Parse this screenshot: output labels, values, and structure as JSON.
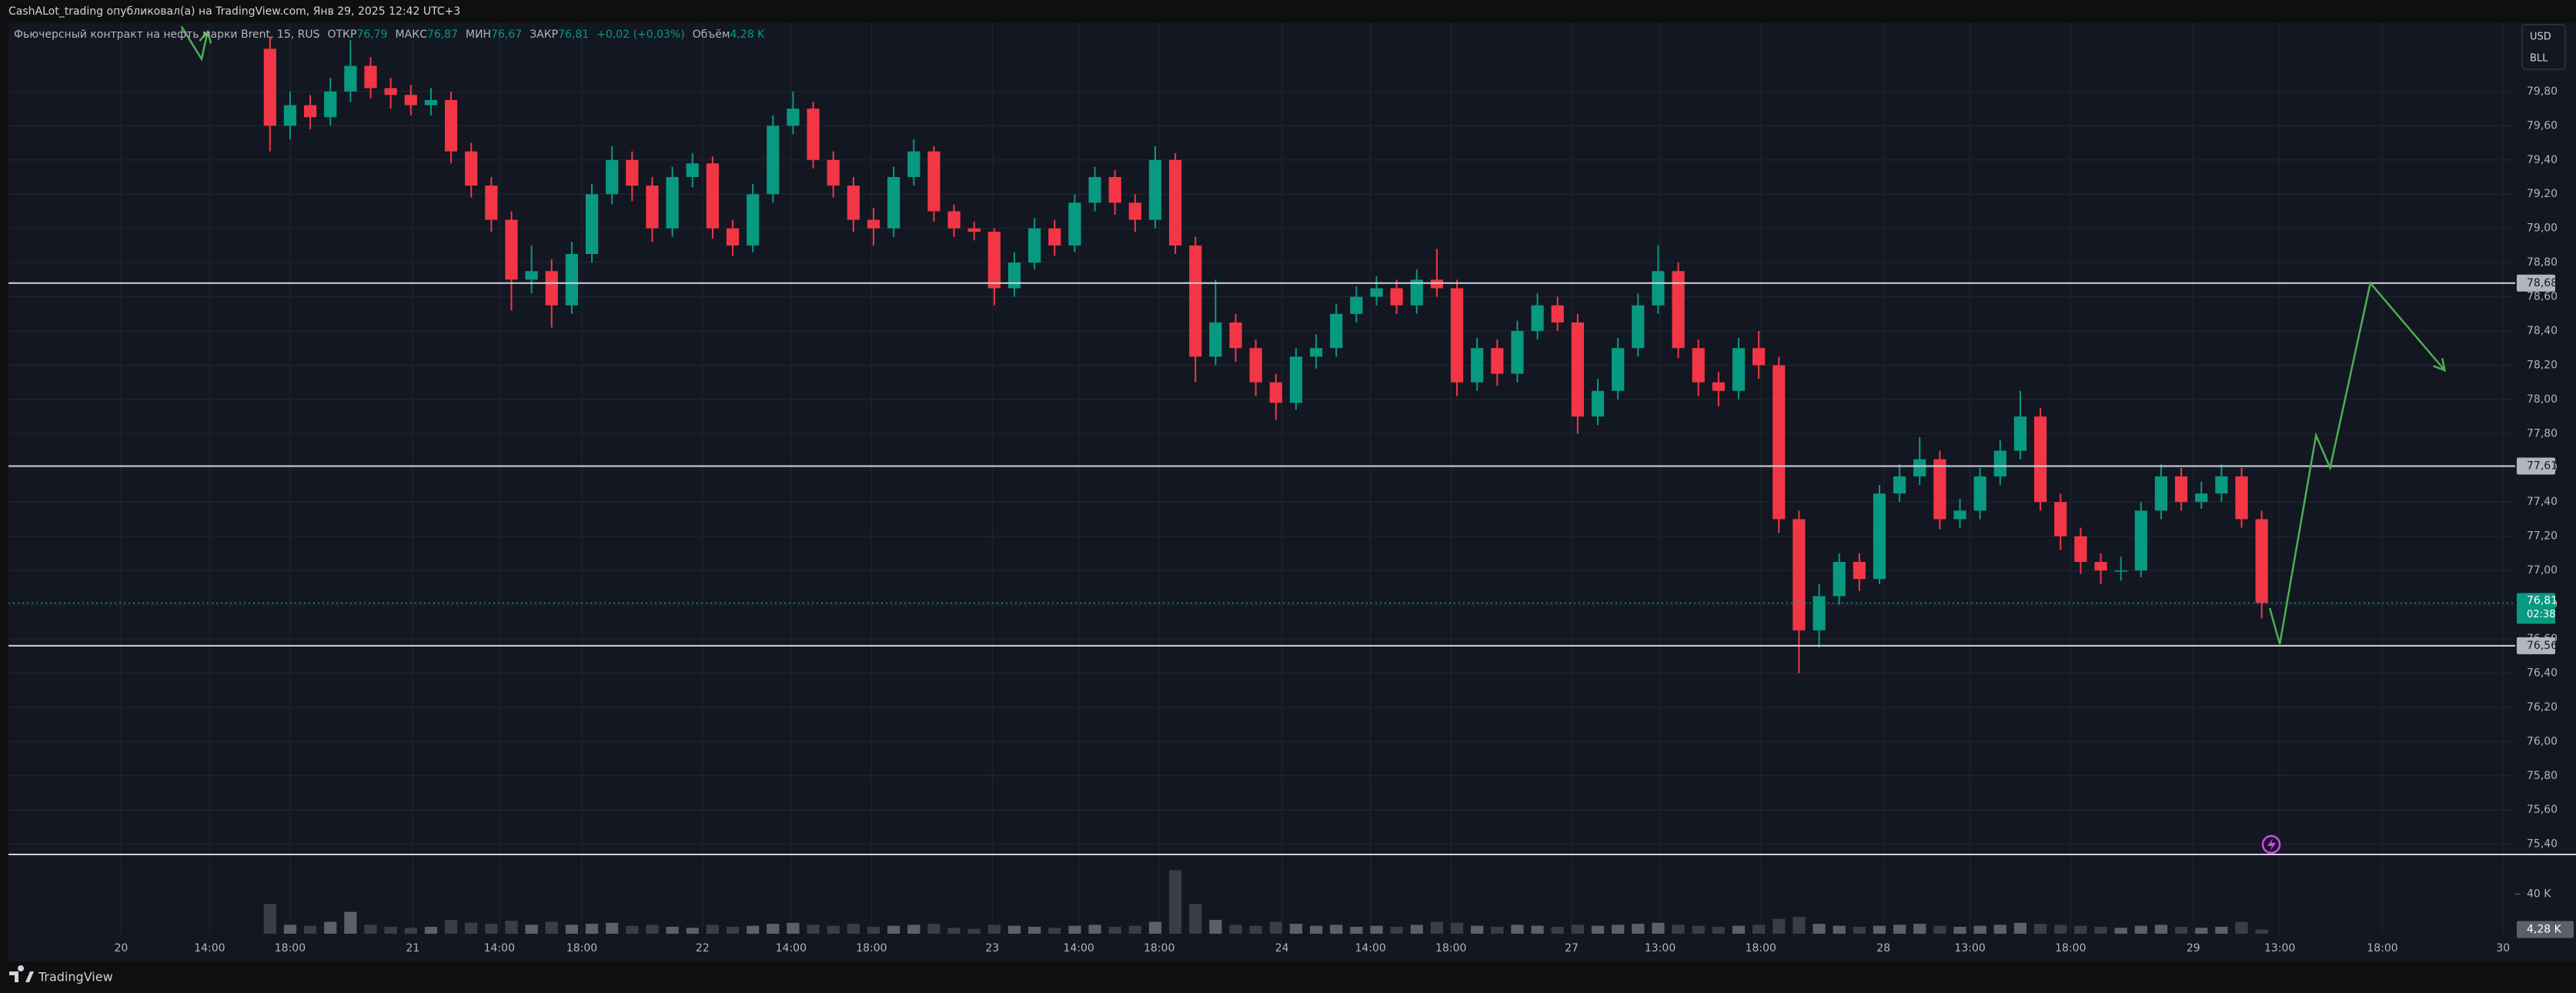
{
  "header": {
    "author_line": "CashALot_trading опубликовал(а) на TradingView.com, Янв 29, 2025 12:42 UTC+3"
  },
  "legend": {
    "symbol": "Фьючерсный контракт на нефть марки Brent, 15, RUS",
    "open_label": "ОТКР",
    "open": "76,79",
    "high_label": "МАКС",
    "high": "76,87",
    "low_label": "МИН",
    "low": "76,67",
    "close_label": "ЗАКР",
    "close": "76,81",
    "change": "+0,02 (+0,03%)",
    "volume_label": "Объём",
    "volume": "4,28 K"
  },
  "currency": {
    "code": "USD",
    "unit": "BLL"
  },
  "footer": {
    "brand": "TradingView"
  },
  "chart_data": {
    "type": "candlestick",
    "up_color": "#089981",
    "down_color": "#f23645",
    "xlim": [
      0,
      124.6
    ],
    "ylim": [
      75.34,
      80.2
    ],
    "grid": true,
    "yticks": [
      {
        "value": 75.4,
        "label": "75,40"
      },
      {
        "value": 75.6,
        "label": "75,60"
      },
      {
        "value": 75.8,
        "label": "75,80"
      },
      {
        "value": 76.0,
        "label": "76,00"
      },
      {
        "value": 76.2,
        "label": "76,20"
      },
      {
        "value": 76.4,
        "label": "76,40"
      },
      {
        "value": 76.6,
        "label": "76,60"
      },
      {
        "value": 76.8,
        "label": "76,80"
      },
      {
        "value": 77.0,
        "label": "77,00"
      },
      {
        "value": 77.2,
        "label": "77,20"
      },
      {
        "value": 77.4,
        "label": "77,40"
      },
      {
        "value": 77.6,
        "label": "77,60"
      },
      {
        "value": 77.8,
        "label": "77,80"
      },
      {
        "value": 78.0,
        "label": "78,00"
      },
      {
        "value": 78.2,
        "label": "78,20"
      },
      {
        "value": 78.4,
        "label": "78,40"
      },
      {
        "value": 78.6,
        "label": "78,60"
      },
      {
        "value": 78.8,
        "label": "78,80"
      },
      {
        "value": 79.0,
        "label": "79,00"
      },
      {
        "value": 79.2,
        "label": "79,20"
      },
      {
        "value": 79.4,
        "label": "79,40"
      },
      {
        "value": 79.6,
        "label": "79,60"
      },
      {
        "value": 79.8,
        "label": "79,80"
      }
    ],
    "xticks": [
      {
        "value": 5.6,
        "label": "20"
      },
      {
        "value": 10.0,
        "label": "14:00"
      },
      {
        "value": 14.0,
        "label": "18:00"
      },
      {
        "value": 20.1,
        "label": "21"
      },
      {
        "value": 24.4,
        "label": "14:00"
      },
      {
        "value": 28.5,
        "label": "18:00"
      },
      {
        "value": 34.5,
        "label": "22"
      },
      {
        "value": 38.9,
        "label": "14:00"
      },
      {
        "value": 42.9,
        "label": "18:00"
      },
      {
        "value": 48.9,
        "label": "23"
      },
      {
        "value": 53.2,
        "label": "14:00"
      },
      {
        "value": 57.2,
        "label": "18:00"
      },
      {
        "value": 63.3,
        "label": "24"
      },
      {
        "value": 67.7,
        "label": "14:00"
      },
      {
        "value": 71.7,
        "label": "18:00"
      },
      {
        "value": 77.7,
        "label": "27"
      },
      {
        "value": 82.1,
        "label": "13:00"
      },
      {
        "value": 87.1,
        "label": "18:00"
      },
      {
        "value": 93.2,
        "label": "28"
      },
      {
        "value": 97.5,
        "label": "13:00"
      },
      {
        "value": 102.5,
        "label": "18:00"
      },
      {
        "value": 108.6,
        "label": "29"
      },
      {
        "value": 112.9,
        "label": "13:00"
      },
      {
        "value": 118.0,
        "label": "18:00"
      },
      {
        "value": 124.0,
        "label": "30"
      }
    ],
    "candles": {
      "x": [
        13,
        14,
        15,
        16,
        17,
        18,
        19,
        20,
        21,
        22,
        23,
        24,
        25,
        26,
        27,
        28,
        29,
        30,
        31,
        32,
        33,
        34,
        35,
        36,
        37,
        38,
        39,
        40,
        41,
        42,
        43,
        44,
        45,
        46,
        47,
        48,
        49,
        50,
        51,
        52,
        53,
        54,
        55,
        56,
        57,
        58,
        59,
        60,
        61,
        62,
        63,
        64,
        65,
        66,
        67,
        68,
        69,
        70,
        71,
        72,
        73,
        74,
        75,
        76,
        77,
        78,
        79,
        80,
        81,
        82,
        83,
        84,
        85,
        86,
        87,
        88,
        89,
        90,
        91,
        92,
        93,
        94,
        95,
        96,
        97,
        98,
        99,
        100,
        101,
        102,
        103,
        104,
        105,
        106,
        107,
        108,
        109,
        110,
        111,
        112
      ],
      "open": [
        80.05,
        79.6,
        79.72,
        79.65,
        79.8,
        79.95,
        79.82,
        79.78,
        79.72,
        79.75,
        79.45,
        79.25,
        79.05,
        78.7,
        78.75,
        78.55,
        78.85,
        79.2,
        79.4,
        79.25,
        79.0,
        79.3,
        79.38,
        79.0,
        78.9,
        79.2,
        79.6,
        79.7,
        79.4,
        79.25,
        79.05,
        79.0,
        79.3,
        79.45,
        79.1,
        79.0,
        78.98,
        78.65,
        78.8,
        79.0,
        78.9,
        79.15,
        79.3,
        79.15,
        79.05,
        79.4,
        78.9,
        78.25,
        78.45,
        78.3,
        78.1,
        77.98,
        78.25,
        78.3,
        78.5,
        78.6,
        78.65,
        78.55,
        78.7,
        78.65,
        78.1,
        78.3,
        78.15,
        78.4,
        78.55,
        78.45,
        77.9,
        78.05,
        78.3,
        78.55,
        78.75,
        78.3,
        78.1,
        78.05,
        78.3,
        78.2,
        77.3,
        76.65,
        76.85,
        77.05,
        76.95,
        77.45,
        77.55,
        77.65,
        77.3,
        77.35,
        77.55,
        77.7,
        77.9,
        77.4,
        77.2,
        77.05,
        77.0,
        77.0,
        77.35,
        77.55,
        77.4,
        77.45,
        77.55,
        77.3
      ],
      "high": [
        80.12,
        79.8,
        79.78,
        79.88,
        80.1,
        80.0,
        79.88,
        79.84,
        79.82,
        79.8,
        79.5,
        79.3,
        79.1,
        78.9,
        78.82,
        78.92,
        79.26,
        79.48,
        79.45,
        79.3,
        79.36,
        79.44,
        79.42,
        79.05,
        79.26,
        79.66,
        79.8,
        79.74,
        79.45,
        79.3,
        79.12,
        79.36,
        79.52,
        79.48,
        79.14,
        79.04,
        79.0,
        78.86,
        79.06,
        79.05,
        79.2,
        79.36,
        79.34,
        79.2,
        79.48,
        79.44,
        78.95,
        78.7,
        78.5,
        78.35,
        78.15,
        78.3,
        78.38,
        78.56,
        78.66,
        78.72,
        78.7,
        78.76,
        78.88,
        78.7,
        78.36,
        78.35,
        78.46,
        78.62,
        78.6,
        78.5,
        78.12,
        78.36,
        78.62,
        78.9,
        78.8,
        78.35,
        78.16,
        78.36,
        78.4,
        78.25,
        77.35,
        76.92,
        77.1,
        77.1,
        77.5,
        77.62,
        77.78,
        77.7,
        77.42,
        77.6,
        77.76,
        78.05,
        77.95,
        77.45,
        77.25,
        77.1,
        77.08,
        77.4,
        77.62,
        77.6,
        77.52,
        77.62,
        77.6,
        77.35
      ],
      "low": [
        79.45,
        79.52,
        79.58,
        79.6,
        79.74,
        79.76,
        79.7,
        79.66,
        79.66,
        79.38,
        79.18,
        78.98,
        78.52,
        78.62,
        78.42,
        78.5,
        78.8,
        79.14,
        79.16,
        78.92,
        78.95,
        79.24,
        78.94,
        78.84,
        78.86,
        79.15,
        79.55,
        79.35,
        79.18,
        78.98,
        78.9,
        78.95,
        79.25,
        79.04,
        78.95,
        78.93,
        78.55,
        78.6,
        78.76,
        78.84,
        78.86,
        79.1,
        79.08,
        78.98,
        79.0,
        78.85,
        78.1,
        78.2,
        78.22,
        78.02,
        77.88,
        77.94,
        78.18,
        78.25,
        78.45,
        78.55,
        78.5,
        78.5,
        78.6,
        78.02,
        78.05,
        78.08,
        78.1,
        78.35,
        78.4,
        77.8,
        77.85,
        78.0,
        78.25,
        78.5,
        78.24,
        78.02,
        77.96,
        78.0,
        78.12,
        77.22,
        76.4,
        76.55,
        76.8,
        76.88,
        76.92,
        77.4,
        77.5,
        77.24,
        77.25,
        77.3,
        77.5,
        77.65,
        77.35,
        77.12,
        76.98,
        76.92,
        76.94,
        76.96,
        77.3,
        77.35,
        77.36,
        77.4,
        77.25,
        76.72
      ],
      "close": [
        79.6,
        79.72,
        79.65,
        79.8,
        79.95,
        79.82,
        79.78,
        79.72,
        79.75,
        79.45,
        79.25,
        79.05,
        78.7,
        78.75,
        78.55,
        78.85,
        79.2,
        79.4,
        79.25,
        79.0,
        79.3,
        79.38,
        79.0,
        78.9,
        79.2,
        79.6,
        79.7,
        79.4,
        79.25,
        79.05,
        79.0,
        79.3,
        79.45,
        79.1,
        79.0,
        78.98,
        78.65,
        78.8,
        79.0,
        78.9,
        79.15,
        79.3,
        79.15,
        79.05,
        79.4,
        78.9,
        78.25,
        78.45,
        78.3,
        78.1,
        77.98,
        78.25,
        78.3,
        78.5,
        78.6,
        78.65,
        78.55,
        78.7,
        78.65,
        78.1,
        78.3,
        78.15,
        78.4,
        78.55,
        78.45,
        77.9,
        78.05,
        78.3,
        78.55,
        78.75,
        78.3,
        78.1,
        78.05,
        78.3,
        78.2,
        77.3,
        76.65,
        76.85,
        77.05,
        76.95,
        77.45,
        77.55,
        77.65,
        77.3,
        77.35,
        77.55,
        77.7,
        77.9,
        77.4,
        77.2,
        77.05,
        77.0,
        77.0,
        77.35,
        77.55,
        77.4,
        77.45,
        77.55,
        77.3,
        76.81
      ]
    },
    "volume": {
      "ylim": [
        0,
        76800
      ],
      "yticks": [
        {
          "value": 40000,
          "label": "40 K"
        }
      ],
      "last": {
        "value": 4280,
        "label": "4,28 K"
      },
      "values": [
        30000,
        9000,
        8000,
        12000,
        22000,
        9000,
        7000,
        6000,
        7000,
        14000,
        11000,
        10000,
        13000,
        9000,
        12000,
        9000,
        10000,
        11000,
        8000,
        9000,
        7000,
        6000,
        9000,
        7000,
        8000,
        10000,
        11000,
        9000,
        8000,
        10000,
        7000,
        8000,
        9000,
        10000,
        6000,
        5000,
        9000,
        8000,
        7000,
        6000,
        8000,
        9000,
        7000,
        8000,
        12000,
        64000,
        30000,
        14000,
        9000,
        8000,
        12000,
        10000,
        8000,
        9000,
        7000,
        8000,
        7000,
        9000,
        12000,
        11000,
        8000,
        7000,
        9000,
        8000,
        7000,
        9000,
        8000,
        9000,
        10000,
        11000,
        9000,
        8000,
        7000,
        8000,
        9000,
        15000,
        17000,
        10000,
        8000,
        7000,
        8000,
        9000,
        10000,
        8000,
        7000,
        8000,
        9000,
        11000,
        10000,
        9000,
        8000,
        7000,
        6000,
        8000,
        9000,
        7000,
        6000,
        7000,
        12000,
        4280
      ]
    },
    "levels": [
      {
        "value": 78.68,
        "label": "78,68"
      },
      {
        "value": 77.61,
        "label": "77,61"
      },
      {
        "value": 76.56,
        "label": "76,56"
      }
    ],
    "last_price": {
      "value": 76.81,
      "label": "76,81",
      "countdown": "02:38"
    },
    "drawings": [
      {
        "color": "#4caf50",
        "x": [
          112.4,
          112.9,
          114.7,
          115.4,
          117.4,
          121.1
        ],
        "values": [
          76.78,
          76.57,
          77.79,
          77.6,
          78.68,
          78.17
        ]
      },
      {
        "color": "#4caf50",
        "x": [
          8.6,
          9.6,
          9.9
        ],
        "values": [
          80.18,
          79.99,
          80.15
        ]
      }
    ]
  }
}
